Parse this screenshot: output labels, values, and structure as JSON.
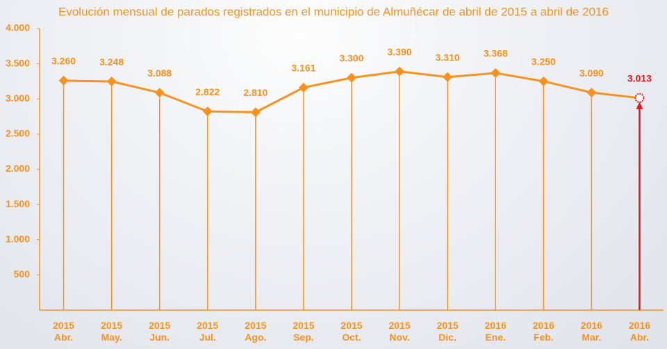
{
  "chart_data": {
    "type": "line",
    "title": "Evolución mensual de parados registrados en el municipio de Almuñécar de abril de 2015 a abril de 2016",
    "categories": [
      "2015 Abr.",
      "2015 May.",
      "2015 Jun.",
      "2015 Jul.",
      "2015 Ago.",
      "2015 Sep.",
      "2015 Oct.",
      "2015 Nov.",
      "2015 Dic.",
      "2016 Ene.",
      "2016 Feb.",
      "2016 Mar.",
      "2016 Abr."
    ],
    "series": [
      {
        "color": "#f7921e",
        "values": [
          3260,
          3248,
          3088,
          2822,
          2810,
          3161,
          3300,
          3390,
          3310,
          3368,
          3250,
          3090,
          3013
        ],
        "value_labels": [
          "3.260",
          "3.248",
          "3.088",
          "2.822",
          "2.810",
          "3.161",
          "3.300",
          "3.390",
          "3.310",
          "3.368",
          "3.250",
          "3.090",
          "3.013"
        ],
        "label_colors": [
          "#f7921e",
          "#f7921e",
          "#f7921e",
          "#f7921e",
          "#f7921e",
          "#f7921e",
          "#f7921e",
          "#f7921e",
          "#f7921e",
          "#f7921e",
          "#f7921e",
          "#f7921e",
          "#e3141b"
        ]
      }
    ],
    "ylim": [
      0,
      4000
    ],
    "yticks": [
      {
        "value": 500,
        "label": "500"
      },
      {
        "value": 1000,
        "label": "1.000"
      },
      {
        "value": 1500,
        "label": "1.500"
      },
      {
        "value": 2000,
        "label": "2.000"
      },
      {
        "value": 2500,
        "label": "2.500"
      },
      {
        "value": 3000,
        "label": "3.000"
      },
      {
        "value": 3500,
        "label": "3.500"
      },
      {
        "value": 4000,
        "label": "4.000"
      }
    ]
  }
}
